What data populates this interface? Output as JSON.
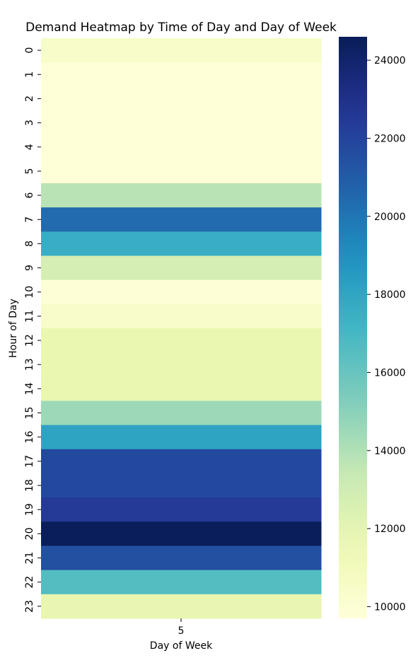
{
  "chart_data": {
    "type": "heatmap",
    "title": "Demand Heatmap by Time of Day and Day of Week",
    "xlabel": "Day of Week",
    "ylabel": "Hour of Day",
    "x_categories": [
      "5"
    ],
    "y_categories": [
      "0",
      "1",
      "2",
      "3",
      "4",
      "5",
      "6",
      "7",
      "8",
      "9",
      "10",
      "11",
      "12",
      "13",
      "14",
      "15",
      "16",
      "17",
      "18",
      "19",
      "20",
      "21",
      "22",
      "23"
    ],
    "values": [
      [
        10500
      ],
      [
        9800
      ],
      [
        9800
      ],
      [
        9800
      ],
      [
        9800
      ],
      [
        9800
      ],
      [
        13800
      ],
      [
        20400
      ],
      [
        17600
      ],
      [
        12800
      ],
      [
        9900
      ],
      [
        10400
      ],
      [
        11700
      ],
      [
        11700
      ],
      [
        11700
      ],
      [
        14500
      ],
      [
        18100
      ],
      [
        21800
      ],
      [
        21800
      ],
      [
        22500
      ],
      [
        24500
      ],
      [
        21500
      ],
      [
        16600
      ],
      [
        11800
      ]
    ],
    "colorbar": {
      "min": 9700,
      "max": 24600,
      "ticks": [
        10000,
        12000,
        14000,
        16000,
        18000,
        20000,
        22000,
        24000
      ],
      "tick_labels": [
        "10000",
        "12000",
        "14000",
        "16000",
        "18000",
        "20000",
        "22000",
        "24000"
      ],
      "colormap": "YlGnBu"
    }
  }
}
